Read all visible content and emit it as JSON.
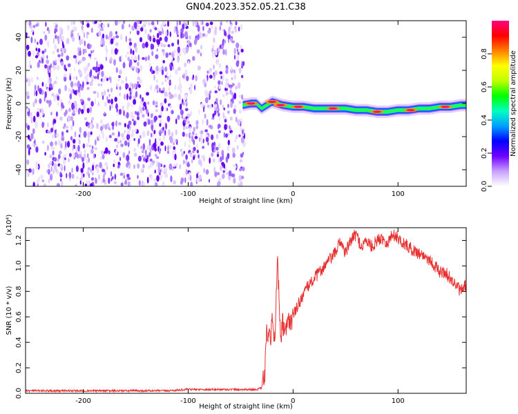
{
  "title": "GN04.2023.352.05.21.C38",
  "chart_data": [
    {
      "type": "heatmap",
      "xlabel": "Height of straight line (km)",
      "ylabel": "Frequency (Hz)",
      "xlim": [
        -255,
        165
      ],
      "ylim": [
        -50,
        50
      ],
      "xticks": [
        -200,
        -100,
        0,
        100
      ],
      "yticks": [
        -40,
        -20,
        0,
        20,
        40
      ],
      "grid": false,
      "noise_region_x": [
        -255,
        -45
      ],
      "signal_track": {
        "x": [
          -48,
          -40,
          -35,
          -30,
          -25,
          -20,
          -15,
          -10,
          0,
          10,
          20,
          30,
          40,
          50,
          60,
          70,
          80,
          90,
          100,
          110,
          120,
          130,
          140,
          150,
          160,
          165
        ],
        "freq": [
          -1,
          0,
          0,
          -3,
          -1,
          1,
          0,
          -1,
          -2,
          -2,
          -3,
          -3,
          -3,
          -3,
          -4,
          -4,
          -5,
          -5,
          -4,
          -4,
          -3,
          -3,
          -2,
          -2,
          -1,
          -1
        ]
      },
      "colorbar": {
        "label": "Normalized spectral amplitude",
        "range": [
          0,
          1
        ],
        "ticks": [
          "0.0",
          "0.2",
          "0.4",
          "0.6",
          "0.8"
        ],
        "colors": [
          "#ffffff",
          "#c8a0ff",
          "#7000ff",
          "#0000ff",
          "#00a0ff",
          "#00ffc0",
          "#00ff00",
          "#c0ff00",
          "#ffff00",
          "#ff8000",
          "#ff0000",
          "#ff0080"
        ]
      }
    },
    {
      "type": "line",
      "xlabel": "Height of straight line (km)",
      "ylabel": "SNR (10 * v/v)",
      "scale_note": "(x10⁴)",
      "xlim": [
        -255,
        165
      ],
      "ylim": [
        0,
        1.3
      ],
      "xticks": [
        -200,
        -100,
        0,
        100
      ],
      "yticks": [
        "0.0",
        "0.2",
        "0.4",
        "0.6",
        "0.8",
        "1.0",
        "1.2"
      ],
      "color": "#e83030",
      "x": [
        -255,
        -240,
        -220,
        -200,
        -180,
        -160,
        -140,
        -120,
        -100,
        -80,
        -60,
        -45,
        -40,
        -35,
        -30,
        -27,
        -25,
        -22,
        -20,
        -17,
        -15,
        -12,
        -10,
        -8,
        -5,
        0,
        5,
        10,
        15,
        20,
        25,
        30,
        35,
        40,
        45,
        50,
        55,
        60,
        65,
        70,
        75,
        80,
        85,
        90,
        95,
        100,
        105,
        110,
        115,
        120,
        125,
        130,
        135,
        140,
        145,
        150,
        155,
        160,
        165
      ],
      "y": [
        0.02,
        0.02,
        0.02,
        0.02,
        0.02,
        0.02,
        0.02,
        0.02,
        0.03,
        0.03,
        0.03,
        0.03,
        0.03,
        0.03,
        0.04,
        0.15,
        0.5,
        0.4,
        0.55,
        0.45,
        1.1,
        0.4,
        0.55,
        0.45,
        0.55,
        0.6,
        0.7,
        0.78,
        0.85,
        0.9,
        0.95,
        1.0,
        1.05,
        1.1,
        1.2,
        1.1,
        1.2,
        1.25,
        1.15,
        1.2,
        1.15,
        1.2,
        1.22,
        1.18,
        1.25,
        1.22,
        1.18,
        1.15,
        1.12,
        1.1,
        1.08,
        1.05,
        1.0,
        0.95,
        0.95,
        0.9,
        0.85,
        0.8,
        0.85
      ]
    }
  ]
}
